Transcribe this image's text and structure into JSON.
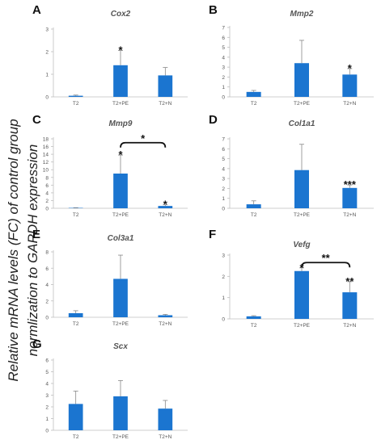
{
  "figure": {
    "ylabel_line1": "Relative mRNA levels (FC) of control group",
    "ylabel_line2": "normlization to GAPDH expression",
    "bar_color": "#1b75d0",
    "error_color": "#888888",
    "axis_color": "#bfbfbf",
    "tick_text_color": "#555555"
  },
  "chart_data": [
    {
      "panel": "A",
      "title": "Cox2",
      "type": "bar",
      "categories": [
        "T2",
        "T2+PE",
        "T2+N"
      ],
      "values": [
        0.05,
        1.4,
        0.95
      ],
      "errors": [
        0.03,
        0.65,
        0.35
      ],
      "yticks": [
        0,
        1,
        2,
        3
      ],
      "ylim": [
        0,
        3
      ],
      "annotations": [
        {
          "category": "T2+PE",
          "text": "*"
        }
      ],
      "brackets": []
    },
    {
      "panel": "B",
      "title": "Mmp2",
      "type": "bar",
      "categories": [
        "T2",
        "T2+PE",
        "T2+N"
      ],
      "values": [
        0.5,
        3.4,
        2.25
      ],
      "errors": [
        0.15,
        2.3,
        0.6
      ],
      "yticks": [
        0,
        1,
        2,
        3,
        4,
        5,
        6,
        7
      ],
      "ylim": [
        0,
        7
      ],
      "annotations": [
        {
          "category": "T2+N",
          "text": "*"
        }
      ],
      "brackets": []
    },
    {
      "panel": "C",
      "title": "Mmp9",
      "type": "bar",
      "categories": [
        "T2",
        "T2+PE",
        "T2+N"
      ],
      "values": [
        0.1,
        9.0,
        0.6
      ],
      "errors": [
        0.05,
        4.8,
        0.3
      ],
      "yticks": [
        0,
        2,
        4,
        6,
        8,
        10,
        12,
        14,
        16,
        18
      ],
      "ylim": [
        0,
        18
      ],
      "annotations": [
        {
          "category": "T2+PE",
          "text": "*"
        },
        {
          "category": "T2+N",
          "text": "*"
        }
      ],
      "brackets": [
        {
          "from": "T2+PE",
          "to": "T2+N",
          "text": "*",
          "y": 17
        }
      ]
    },
    {
      "panel": "D",
      "title": "Col1a1",
      "type": "bar",
      "categories": [
        "T2",
        "T2+PE",
        "T2+N"
      ],
      "values": [
        0.4,
        3.85,
        2.05
      ],
      "errors": [
        0.35,
        2.6,
        0.3
      ],
      "yticks": [
        0,
        1,
        2,
        3,
        4,
        5,
        6,
        7
      ],
      "ylim": [
        0,
        7
      ],
      "annotations": [
        {
          "category": "T2+N",
          "text": "***"
        }
      ],
      "brackets": []
    },
    {
      "panel": "E",
      "title": "Col3a1",
      "type": "bar",
      "categories": [
        "T2",
        "T2+PE",
        "T2+N"
      ],
      "values": [
        0.5,
        4.7,
        0.25
      ],
      "errors": [
        0.3,
        2.9,
        0.1
      ],
      "yticks": [
        0,
        2,
        4,
        6,
        8
      ],
      "ylim": [
        0,
        8
      ],
      "annotations": [],
      "brackets": []
    },
    {
      "panel": "F",
      "title": "Vefg",
      "type": "bar",
      "categories": [
        "T2",
        "T2+PE",
        "T2+N"
      ],
      "values": [
        0.12,
        2.25,
        1.25
      ],
      "errors": [
        0.03,
        0.15,
        0.5
      ],
      "yticks": [
        0,
        1,
        2,
        3
      ],
      "ylim": [
        0,
        3
      ],
      "annotations": [
        {
          "category": "T2+PE",
          "text": "*"
        },
        {
          "category": "T2+N",
          "text": "**"
        }
      ],
      "brackets": [
        {
          "from": "T2+PE",
          "to": "T2+N",
          "text": "**",
          "y": 2.65
        }
      ]
    },
    {
      "panel": "G",
      "title": "Scx",
      "type": "bar",
      "categories": [
        "T2",
        "T2+PE",
        "T2+N"
      ],
      "values": [
        2.25,
        2.9,
        1.85
      ],
      "errors": [
        1.1,
        1.35,
        0.7
      ],
      "yticks": [
        0,
        1,
        2,
        3,
        4,
        5,
        6
      ],
      "ylim": [
        0,
        6
      ],
      "annotations": [],
      "brackets": []
    }
  ]
}
